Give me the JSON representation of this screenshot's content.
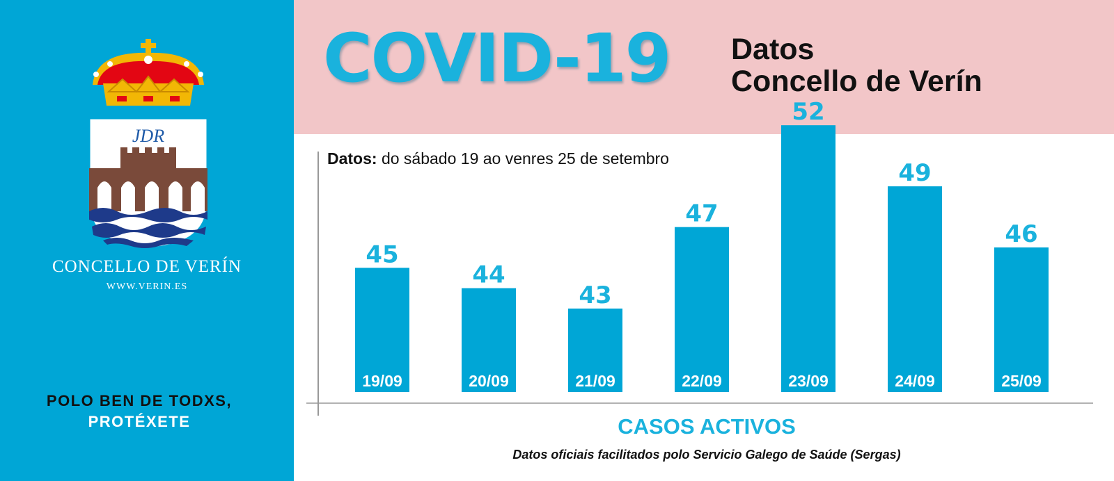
{
  "sidebar": {
    "org_name": "CONCELLO DE VERÍN",
    "website": "WWW.VERIN.ES",
    "slogan_line1": "POLO BEN DE TODXS,",
    "slogan_line2": "PROTÉXETE",
    "crest_monogram": "JDR",
    "colors": {
      "background": "#00a6d6",
      "crown_red": "#e30613",
      "crown_gold": "#f2b705",
      "tower_brown": "#7a4a3a",
      "water_blue": "#1e3a8a"
    }
  },
  "header": {
    "title": "COVID-19",
    "subtitle_line1": "Datos",
    "subtitle_line2": "Concello de Verín",
    "colors": {
      "background": "#f2c6c8",
      "title": "#1ab2dd",
      "subtitle": "#111111"
    }
  },
  "period": {
    "label": "Datos:",
    "text": "do sábado 19 ao venres 25 de setembro"
  },
  "chart_data": {
    "type": "bar",
    "categories": [
      "19/09",
      "20/09",
      "21/09",
      "22/09",
      "23/09",
      "24/09",
      "25/09"
    ],
    "values": [
      45,
      44,
      43,
      47,
      52,
      49,
      46
    ],
    "xlabel": "CASOS ACTIVOS",
    "ylabel": "",
    "grid": false,
    "legend": "none",
    "bar_color": "#00a6d6",
    "label_color": "#1ab2dd"
  },
  "source": "Datos oficiais facilitados polo Servicio Galego de Saúde (Sergas)"
}
